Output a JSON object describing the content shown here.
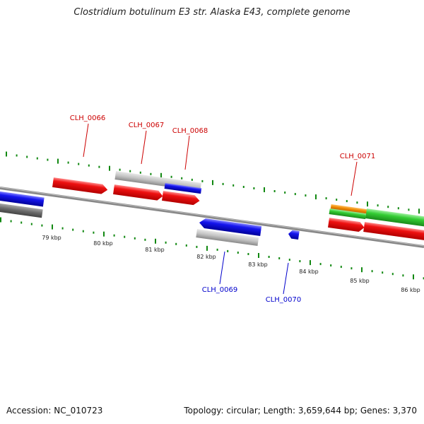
{
  "header": {
    "title": "Clostridium botulinum E3 str. Alaska E43, complete genome"
  },
  "footer": {
    "accession": "Accession: NC_010723",
    "summary": "Topology: circular; Length: 3,659,644 bp; Genes: 3,370"
  },
  "ruler": {
    "ticks": [
      "79 kbp",
      "80 kbp",
      "81 kbp",
      "82 kbp",
      "83 kbp",
      "84 kbp",
      "85 kbp",
      "86 kbp"
    ]
  },
  "genes": {
    "forward": [
      "CLH_0066",
      "CLH_0067",
      "CLH_0068",
      "CLH_0071"
    ],
    "reverse": [
      "CLH_0069",
      "CLH_0070"
    ]
  },
  "colors": {
    "forward_label": "#cc0000",
    "reverse_label": "#0000cc",
    "red_gene": "#ee1111",
    "blue_gene": "#1111dd",
    "grey_feature": "#b8b8b8",
    "green_feature": "#33cc33",
    "orange_feature": "#ee8800",
    "tick_green": "#118811",
    "backbone": "#777777"
  }
}
